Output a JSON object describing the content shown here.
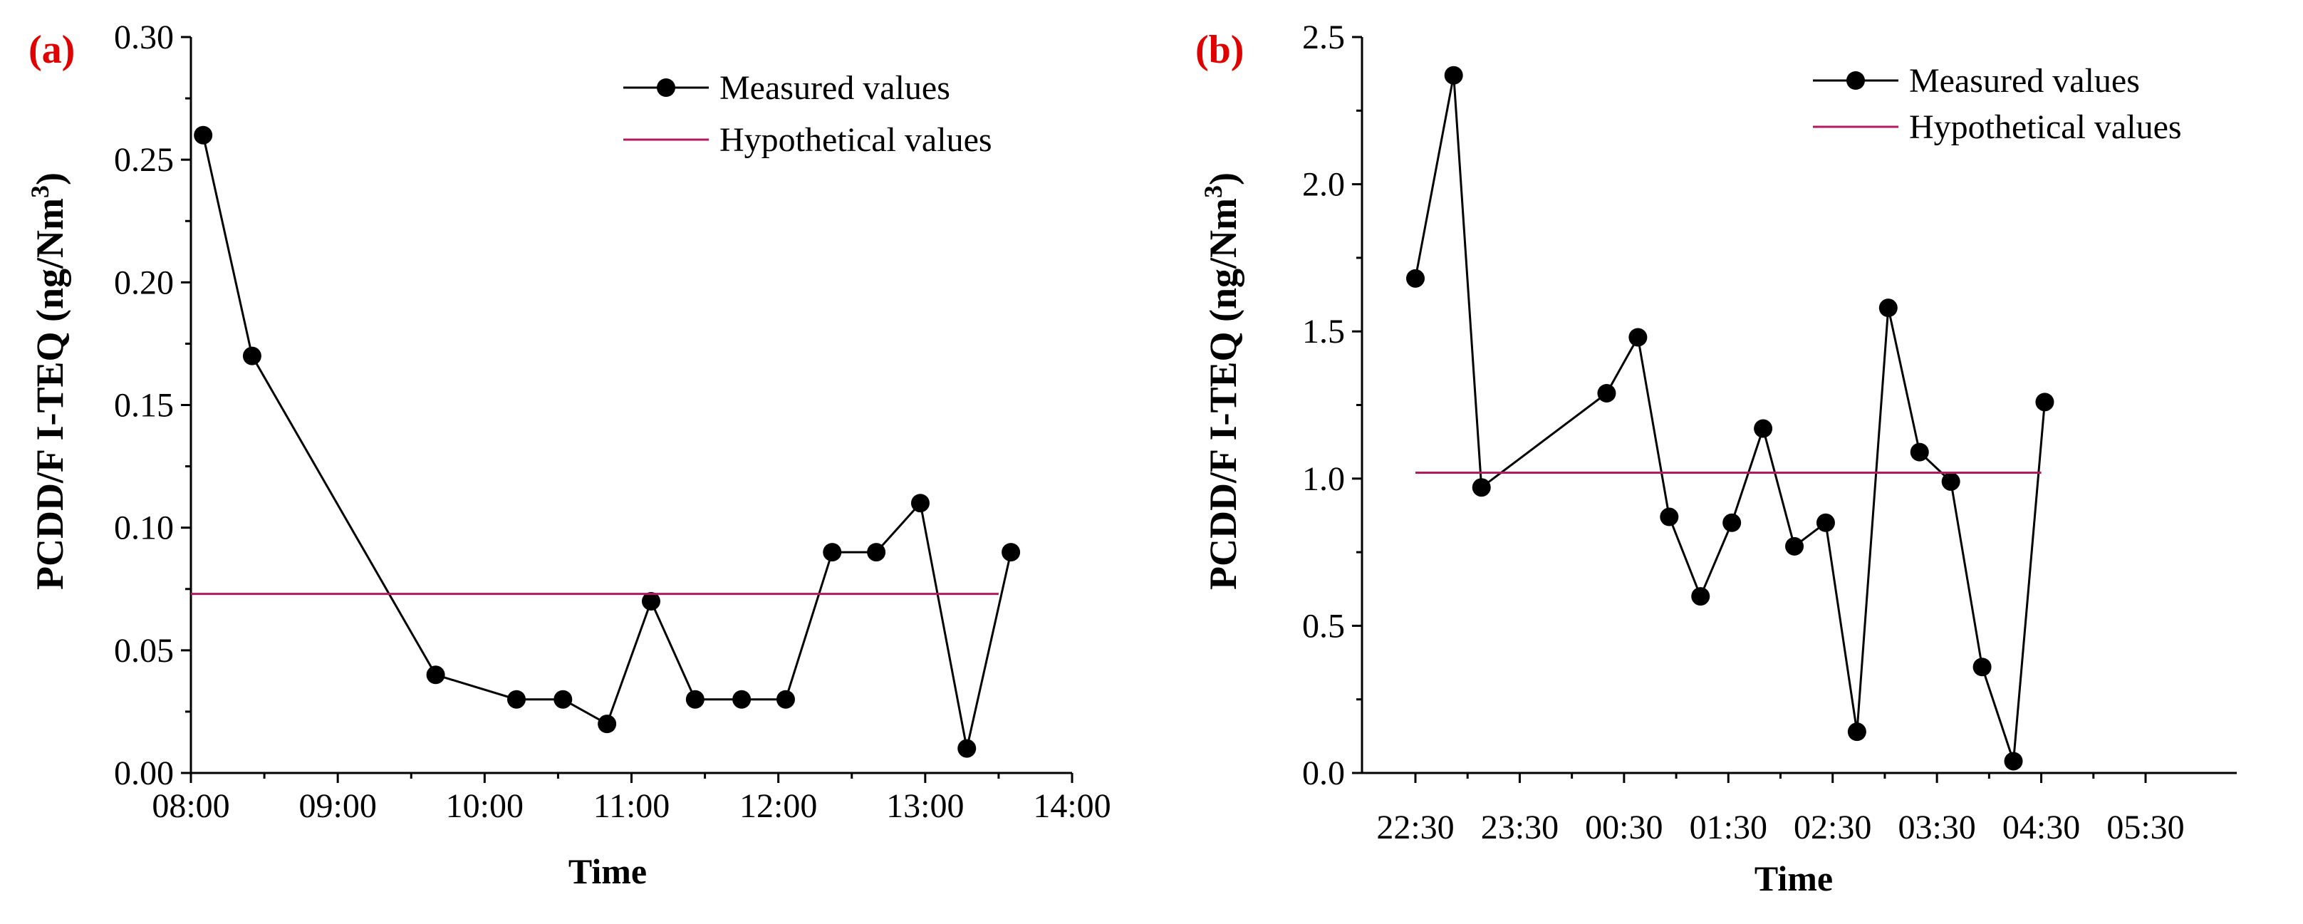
{
  "colors": {
    "measured": "#000000",
    "hypothetical": "#b3195e",
    "panel_label": "#e00000"
  },
  "chart_data": [
    {
      "panel_label": "(a)",
      "type": "line",
      "xlabel": "Time",
      "ylabel": "PCDD/F I-TEQ (ng/Nm",
      "ylabel_superscript": "3",
      "ylabel_suffix": ")",
      "xlim": [
        "08:00",
        "14:00"
      ],
      "ylim": [
        0,
        0.3
      ],
      "x_ticks": [
        "08:00",
        "09:00",
        "10:00",
        "11:00",
        "12:00",
        "13:00",
        "14:00"
      ],
      "y_ticks": [
        "0.00",
        "0.05",
        "0.10",
        "0.15",
        "0.20",
        "0.25",
        "0.30"
      ],
      "legend": {
        "placement": "top-right",
        "entries": [
          "Measured values",
          "Hypothetical values"
        ]
      },
      "series": [
        {
          "name": "Measured values",
          "style": "line+markers",
          "x": [
            "08:05",
            "08:25",
            "09:40",
            "10:13",
            "10:32",
            "10:50",
            "11:08",
            "11:26",
            "11:45",
            "12:03",
            "12:22",
            "12:40",
            "12:58",
            "13:17",
            "13:35"
          ],
          "y": [
            0.26,
            0.17,
            0.04,
            0.03,
            0.03,
            0.02,
            0.07,
            0.03,
            0.03,
            0.03,
            0.09,
            0.09,
            0.11,
            0.01,
            0.09
          ]
        },
        {
          "name": "Hypothetical values",
          "style": "line",
          "x": [
            "08:00",
            "13:30"
          ],
          "y": [
            0.073,
            0.073
          ]
        }
      ]
    },
    {
      "panel_label": "(b)",
      "type": "line",
      "xlabel": "Time",
      "ylabel": "PCDD/F I-TEQ (ng/Nm",
      "ylabel_superscript": "3",
      "ylabel_suffix": ")",
      "xlim": [
        "22:30",
        "05:30"
      ],
      "ylim": [
        0,
        2.5
      ],
      "x_ticks": [
        "22:30",
        "23:30",
        "00:30",
        "01:30",
        "02:30",
        "03:30",
        "04:30",
        "05:30"
      ],
      "y_ticks": [
        "0.0",
        "0.5",
        "1.0",
        "1.5",
        "2.0",
        "2.5"
      ],
      "legend": {
        "placement": "top-right",
        "entries": [
          "Measured values",
          "Hypothetical values"
        ]
      },
      "series": [
        {
          "name": "Measured values",
          "style": "line+markers",
          "x": [
            "22:30",
            "22:52",
            "23:08",
            "00:20",
            "00:38",
            "00:56",
            "01:14",
            "01:32",
            "01:50",
            "02:08",
            "02:26",
            "02:44",
            "03:02",
            "03:20",
            "03:38",
            "03:56",
            "04:14",
            "04:32"
          ],
          "y": [
            1.68,
            2.37,
            0.97,
            1.29,
            1.48,
            0.87,
            0.6,
            0.85,
            1.17,
            0.77,
            0.85,
            0.14,
            1.58,
            1.09,
            0.99,
            0.36,
            0.04,
            1.26
          ]
        },
        {
          "name": "Hypothetical values",
          "style": "line",
          "x": [
            "22:30",
            "04:30"
          ],
          "y": [
            1.02,
            1.02
          ]
        }
      ]
    }
  ]
}
